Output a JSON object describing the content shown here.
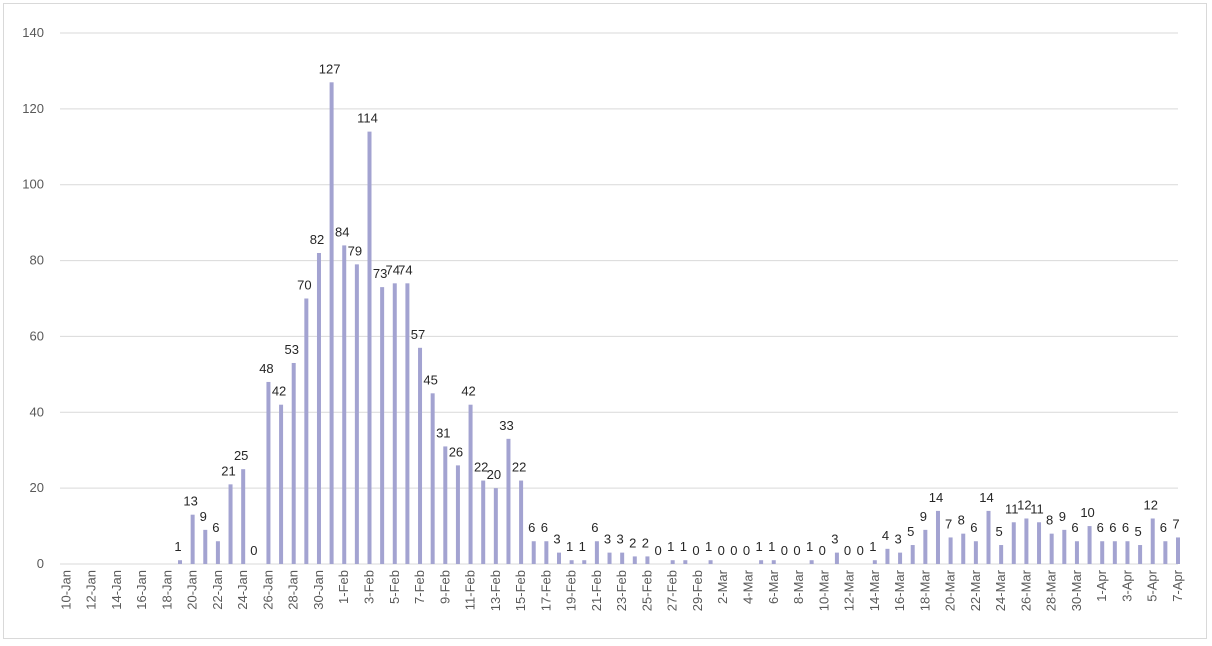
{
  "chart_data": {
    "type": "bar",
    "title": "",
    "xlabel": "",
    "ylabel": "",
    "ylim": [
      0,
      140
    ],
    "yticks": [
      0,
      20,
      40,
      60,
      80,
      100,
      120,
      140
    ],
    "grid": true,
    "legend": "none",
    "bar_color": "#a3a3d1",
    "categories": [
      "10-Jan",
      "11-Jan",
      "12-Jan",
      "13-Jan",
      "14-Jan",
      "15-Jan",
      "16-Jan",
      "17-Jan",
      "18-Jan",
      "19-Jan",
      "20-Jan",
      "21-Jan",
      "22-Jan",
      "23-Jan",
      "24-Jan",
      "25-Jan",
      "26-Jan",
      "27-Jan",
      "28-Jan",
      "29-Jan",
      "30-Jan",
      "31-Jan",
      "1-Feb",
      "2-Feb",
      "3-Feb",
      "4-Feb",
      "5-Feb",
      "6-Feb",
      "7-Feb",
      "8-Feb",
      "9-Feb",
      "10-Feb",
      "11-Feb",
      "12-Feb",
      "13-Feb",
      "14-Feb",
      "15-Feb",
      "16-Feb",
      "17-Feb",
      "18-Feb",
      "19-Feb",
      "20-Feb",
      "21-Feb",
      "22-Feb",
      "23-Feb",
      "24-Feb",
      "25-Feb",
      "26-Feb",
      "27-Feb",
      "28-Feb",
      "29-Feb",
      "1-Mar",
      "2-Mar",
      "3-Mar",
      "4-Mar",
      "5-Mar",
      "6-Mar",
      "7-Mar",
      "8-Mar",
      "9-Mar",
      "10-Mar",
      "11-Mar",
      "12-Mar",
      "13-Mar",
      "14-Mar",
      "15-Mar",
      "16-Mar",
      "17-Mar",
      "18-Mar",
      "19-Mar",
      "20-Mar",
      "21-Mar",
      "22-Mar",
      "23-Mar",
      "24-Mar",
      "25-Mar",
      "26-Mar",
      "27-Mar",
      "28-Mar",
      "29-Mar",
      "30-Mar",
      "31-Mar",
      "1-Apr",
      "2-Apr",
      "3-Apr",
      "4-Apr",
      "5-Apr",
      "6-Apr",
      "7-Apr"
    ],
    "values": [
      null,
      null,
      null,
      null,
      null,
      null,
      null,
      null,
      null,
      1,
      13,
      9,
      6,
      21,
      25,
      0,
      48,
      42,
      53,
      70,
      82,
      127,
      84,
      79,
      114,
      73,
      74,
      74,
      57,
      45,
      31,
      26,
      42,
      22,
      20,
      33,
      22,
      6,
      6,
      3,
      1,
      1,
      6,
      3,
      3,
      2,
      2,
      0,
      1,
      1,
      0,
      1,
      0,
      0,
      0,
      1,
      1,
      0,
      0,
      1,
      0,
      3,
      0,
      0,
      1,
      4,
      3,
      5,
      9,
      14,
      7,
      8,
      6,
      14,
      5,
      11,
      12,
      11,
      8,
      9,
      6,
      10,
      6,
      6,
      6,
      5,
      12,
      6,
      7
    ],
    "tick_label_every": 2
  }
}
